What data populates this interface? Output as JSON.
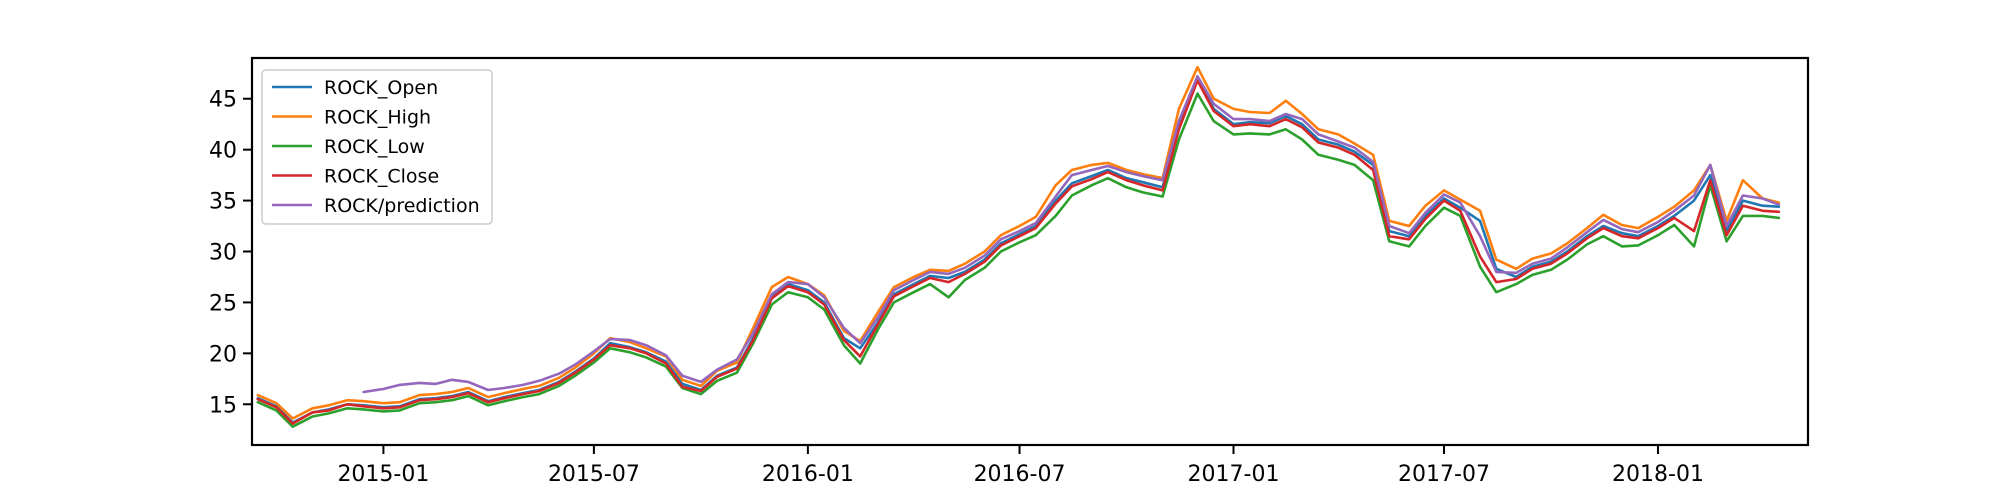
{
  "chart_data": {
    "type": "line",
    "title": "",
    "xlabel": "",
    "ylabel": "",
    "xlim": [
      "2014-09-10",
      "2018-05-10"
    ],
    "ylim": [
      11,
      49
    ],
    "grid": false,
    "legend_placement": "top-left",
    "x_ticks": [
      "2015-01",
      "2015-07",
      "2016-01",
      "2016-07",
      "2017-01",
      "2017-07",
      "2018-01"
    ],
    "y_ticks": [
      15,
      20,
      25,
      30,
      35,
      40,
      45
    ],
    "dates": [
      "2014-09-15",
      "2014-10-01",
      "2014-10-15",
      "2014-11-01",
      "2014-11-15",
      "2014-12-01",
      "2014-12-15",
      "2015-01-01",
      "2015-01-15",
      "2015-02-01",
      "2015-02-15",
      "2015-03-01",
      "2015-03-15",
      "2015-04-01",
      "2015-04-15",
      "2015-05-01",
      "2015-05-15",
      "2015-06-01",
      "2015-06-15",
      "2015-07-01",
      "2015-07-15",
      "2015-08-01",
      "2015-08-15",
      "2015-09-01",
      "2015-09-15",
      "2015-10-01",
      "2015-10-15",
      "2015-11-01",
      "2015-11-15",
      "2015-12-01",
      "2015-12-15",
      "2016-01-01",
      "2016-01-15",
      "2016-02-01",
      "2016-02-15",
      "2016-03-01",
      "2016-03-15",
      "2016-04-01",
      "2016-04-15",
      "2016-05-01",
      "2016-05-15",
      "2016-06-01",
      "2016-06-15",
      "2016-07-01",
      "2016-07-15",
      "2016-08-01",
      "2016-08-15",
      "2016-09-01",
      "2016-09-15",
      "2016-10-01",
      "2016-10-15",
      "2016-11-01",
      "2016-11-15",
      "2016-12-01",
      "2016-12-15",
      "2017-01-01",
      "2017-01-15",
      "2017-02-01",
      "2017-02-15",
      "2017-03-01",
      "2017-03-15",
      "2017-04-01",
      "2017-04-15",
      "2017-05-01",
      "2017-05-15",
      "2017-06-01",
      "2017-06-15",
      "2017-07-01",
      "2017-07-15",
      "2017-08-01",
      "2017-08-15",
      "2017-09-01",
      "2017-09-15",
      "2017-10-01",
      "2017-10-15",
      "2017-11-01",
      "2017-11-15",
      "2017-12-01",
      "2017-12-15",
      "2018-01-01",
      "2018-01-15",
      "2018-02-01",
      "2018-02-15",
      "2018-03-01",
      "2018-03-15",
      "2018-04-01",
      "2018-04-15"
    ],
    "series": [
      {
        "name": "ROCK_Open",
        "color": "#1f77b4",
        "values": [
          15.6,
          14.8,
          13.2,
          14.2,
          14.5,
          15.0,
          14.9,
          14.7,
          14.8,
          15.5,
          15.6,
          15.8,
          16.2,
          15.3,
          15.7,
          16.1,
          16.4,
          17.2,
          18.2,
          19.5,
          21.0,
          20.6,
          20.1,
          19.2,
          17.0,
          16.4,
          17.8,
          18.6,
          21.5,
          25.6,
          26.8,
          26.2,
          25.0,
          21.5,
          20.5,
          23.0,
          25.8,
          26.8,
          27.6,
          27.4,
          28.0,
          29.2,
          30.8,
          31.7,
          32.5,
          35.0,
          36.7,
          37.4,
          38.0,
          37.2,
          36.8,
          36.3,
          42.5,
          47.0,
          44.0,
          42.5,
          42.7,
          42.6,
          43.3,
          42.5,
          41.0,
          40.5,
          39.8,
          38.5,
          32.0,
          31.5,
          33.5,
          35.2,
          34.3,
          33.0,
          28.3,
          27.5,
          28.5,
          29.0,
          30.0,
          31.5,
          32.5,
          31.8,
          31.5,
          32.5,
          33.5,
          35.0,
          37.5,
          32.0,
          35.0,
          34.5,
          34.4
        ]
      },
      {
        "name": "ROCK_High",
        "color": "#ff7f0e",
        "values": [
          15.9,
          15.1,
          13.6,
          14.6,
          14.9,
          15.4,
          15.3,
          15.1,
          15.2,
          15.9,
          16.0,
          16.2,
          16.6,
          15.7,
          16.1,
          16.5,
          16.8,
          17.6,
          18.6,
          20.0,
          21.5,
          21.1,
          20.5,
          19.7,
          17.4,
          16.8,
          18.3,
          19.1,
          22.5,
          26.5,
          27.5,
          26.8,
          25.7,
          22.2,
          21.2,
          24.0,
          26.5,
          27.5,
          28.2,
          28.1,
          28.8,
          30.0,
          31.6,
          32.5,
          33.4,
          36.5,
          38.0,
          38.5,
          38.7,
          38.0,
          37.6,
          37.2,
          44.0,
          48.1,
          45.0,
          44.0,
          43.7,
          43.6,
          44.8,
          43.5,
          42.0,
          41.5,
          40.6,
          39.5,
          33.0,
          32.5,
          34.5,
          36.0,
          35.1,
          34.0,
          29.2,
          28.3,
          29.3,
          29.8,
          30.8,
          32.3,
          33.6,
          32.6,
          32.3,
          33.4,
          34.4,
          36.0,
          38.5,
          33.0,
          37.0,
          35.2,
          34.8
        ]
      },
      {
        "name": "ROCK_Low",
        "color": "#2ca02c",
        "values": [
          15.2,
          14.4,
          12.8,
          13.8,
          14.1,
          14.6,
          14.5,
          14.3,
          14.4,
          15.1,
          15.2,
          15.4,
          15.8,
          14.9,
          15.3,
          15.7,
          16.0,
          16.8,
          17.8,
          19.1,
          20.5,
          20.1,
          19.6,
          18.7,
          16.6,
          16.0,
          17.3,
          18.1,
          21.0,
          24.8,
          26.0,
          25.5,
          24.3,
          20.8,
          19.0,
          22.3,
          25.0,
          26.0,
          26.8,
          25.5,
          27.2,
          28.4,
          30.0,
          30.9,
          31.6,
          33.5,
          35.5,
          36.5,
          37.2,
          36.3,
          35.8,
          35.4,
          41.0,
          45.5,
          42.8,
          41.5,
          41.6,
          41.5,
          42.0,
          41.0,
          39.5,
          39.0,
          38.5,
          37.0,
          31.0,
          30.5,
          32.5,
          34.3,
          33.5,
          28.5,
          26.0,
          26.8,
          27.7,
          28.2,
          29.2,
          30.7,
          31.5,
          30.5,
          30.6,
          31.6,
          32.6,
          30.5,
          36.5,
          31.0,
          33.5,
          33.5,
          33.3
        ]
      },
      {
        "name": "ROCK_Close",
        "color": "#d62728",
        "values": [
          15.5,
          14.7,
          13.1,
          14.2,
          14.4,
          15.0,
          14.8,
          14.6,
          14.7,
          15.4,
          15.5,
          15.7,
          16.1,
          15.2,
          15.6,
          16.0,
          16.3,
          17.1,
          18.1,
          19.4,
          20.8,
          20.5,
          20.0,
          19.0,
          16.7,
          16.3,
          17.7,
          18.5,
          21.3,
          25.4,
          26.6,
          26.0,
          24.8,
          21.3,
          19.7,
          22.8,
          25.6,
          26.6,
          27.4,
          27.0,
          27.8,
          29.0,
          30.6,
          31.5,
          32.3,
          34.7,
          36.4,
          37.1,
          37.8,
          37.0,
          36.5,
          36.0,
          42.0,
          46.8,
          43.8,
          42.3,
          42.5,
          42.3,
          43.0,
          42.2,
          40.7,
          40.2,
          39.5,
          38.0,
          31.5,
          31.2,
          33.2,
          35.0,
          34.0,
          29.5,
          27.0,
          27.3,
          28.3,
          28.8,
          29.8,
          31.3,
          32.3,
          31.5,
          31.3,
          32.3,
          33.3,
          32.0,
          37.0,
          31.6,
          34.5,
          34.0,
          33.9
        ]
      },
      {
        "name": "ROCK/prediction",
        "color": "#9467bd",
        "values": [
          null,
          null,
          null,
          null,
          null,
          null,
          16.2,
          16.5,
          16.9,
          17.1,
          17.0,
          17.4,
          17.2,
          16.4,
          16.6,
          16.9,
          17.3,
          18.0,
          18.9,
          20.2,
          21.4,
          21.3,
          20.8,
          19.8,
          17.8,
          17.2,
          18.4,
          19.4,
          22.0,
          25.8,
          27.0,
          26.8,
          25.5,
          22.5,
          21.0,
          23.5,
          26.2,
          27.2,
          28.0,
          27.8,
          28.4,
          29.6,
          31.2,
          32.0,
          32.8,
          35.4,
          37.5,
          38.0,
          38.4,
          37.8,
          37.4,
          37.0,
          42.8,
          47.2,
          44.5,
          43.0,
          43.0,
          42.8,
          43.5,
          43.0,
          41.5,
          40.8,
          40.2,
          38.8,
          32.5,
          31.8,
          33.8,
          35.6,
          34.8,
          31.5,
          28.0,
          27.9,
          28.8,
          29.3,
          30.4,
          31.9,
          33.1,
          32.2,
          31.9,
          32.9,
          34.0,
          35.5,
          38.5,
          32.5,
          35.5,
          35.2,
          34.6
        ]
      }
    ]
  }
}
